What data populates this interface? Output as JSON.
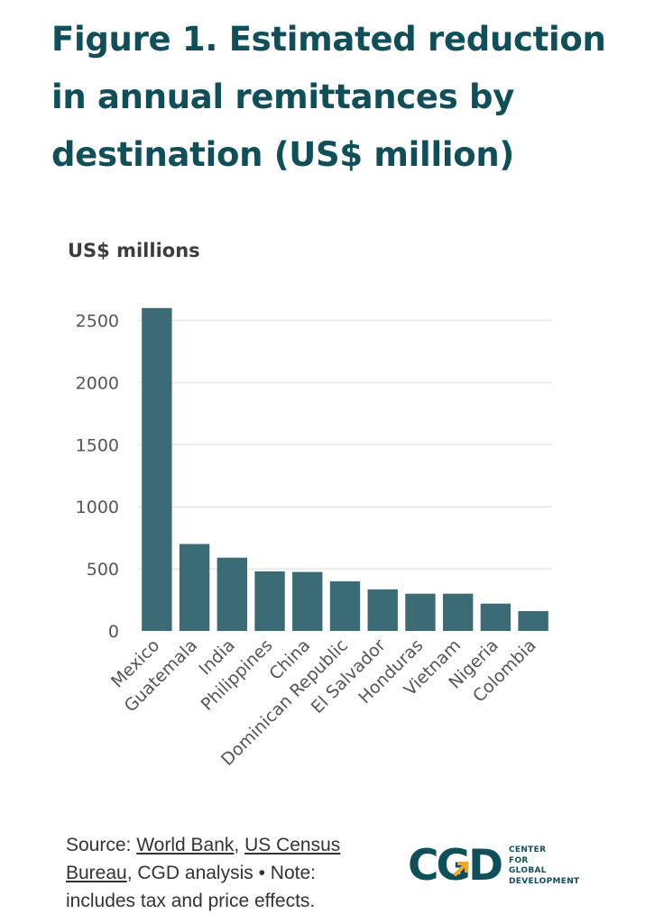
{
  "title": "Figure 1. Estimated reduction in annual remittances by destination (US$ million)",
  "chart_data": {
    "type": "bar",
    "ylabel": "US$ millions",
    "xlabel": "",
    "categories": [
      "Mexico",
      "Guatemala",
      "India",
      "Philippines",
      "China",
      "Dominican Republic",
      "El Salvador",
      "Honduras",
      "Vietnam",
      "Nigeria",
      "Colombia"
    ],
    "values": [
      2600,
      700,
      590,
      480,
      475,
      400,
      335,
      300,
      300,
      220,
      160
    ],
    "ylim": [
      0,
      2700
    ],
    "yticks": [
      "0",
      "500",
      "1000",
      "1500",
      "2000",
      "2500"
    ],
    "grid": true,
    "bar_color": "#3b6b75"
  },
  "footer": {
    "source_prefix": "Source: ",
    "link1": "World Bank",
    "sep1": ", ",
    "link2": "US Census Bureau",
    "rest": ", CGD analysis • Note: includes tax and price effects."
  },
  "logo": {
    "mark": "CGD",
    "line1": "CENTER",
    "line2": "FOR",
    "line3": "GLOBAL",
    "line4": "DEVELOPMENT",
    "accent_color": "#f5a623",
    "brand_color": "#0f4f5a"
  }
}
